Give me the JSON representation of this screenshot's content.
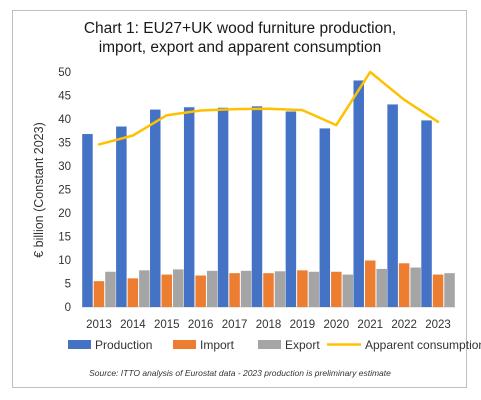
{
  "chart_data": {
    "type": "bar",
    "title_lines": [
      "Chart 1: EU27+UK wood furniture production,",
      "import, export and apparent consumption"
    ],
    "ylabel": "€ billion (Constant 2023)",
    "xlabel": "",
    "ylim": [
      0,
      50
    ],
    "yticks": [
      0,
      5,
      10,
      15,
      20,
      25,
      30,
      35,
      40,
      45,
      50
    ],
    "grid": false,
    "legend_position": "bottom",
    "categories": [
      "2013",
      "2014",
      "2015",
      "2016",
      "2017",
      "2018",
      "2019",
      "2020",
      "2021",
      "2022",
      "2023"
    ],
    "series": [
      {
        "name": "Production",
        "type": "bar",
        "color": "#4472C4",
        "values": [
          36.8,
          38.4,
          42.0,
          42.5,
          42.4,
          42.7,
          41.6,
          38.0,
          48.2,
          43.1,
          39.7
        ]
      },
      {
        "name": "Import",
        "type": "bar",
        "color": "#ED7D31",
        "values": [
          5.5,
          6.1,
          6.9,
          6.7,
          7.2,
          7.2,
          7.8,
          7.5,
          9.9,
          9.3,
          6.9
        ]
      },
      {
        "name": "Export",
        "type": "bar",
        "color": "#A5A5A5",
        "values": [
          7.5,
          7.8,
          8.0,
          7.7,
          7.7,
          7.6,
          7.5,
          6.9,
          8.1,
          8.4,
          7.2
        ]
      },
      {
        "name": "Apparent consumption",
        "type": "line",
        "color": "#FFC000",
        "values": [
          34.6,
          36.5,
          40.8,
          41.8,
          42.1,
          42.2,
          41.9,
          38.7,
          50.0,
          44.1,
          39.4
        ]
      }
    ],
    "source": "Source: ITTO analysis of Eurostat data - 2023 production is preliminary estimate"
  }
}
